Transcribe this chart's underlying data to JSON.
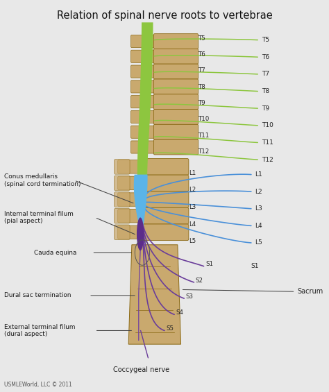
{
  "title": "Relation of spinal nerve roots to vertebrae",
  "background_color": "#e8e8e8",
  "title_fontsize": 10.5,
  "copyright": "USMLEWorld, LLC © 2011",
  "thoracic_labels_inner": [
    "T5",
    "T6",
    "T7",
    "T8",
    "T9",
    "T10",
    "T11",
    "T12"
  ],
  "thoracic_labels_outer": [
    "T5",
    "T6",
    "T7",
    "T8",
    "T9",
    "T10",
    "T11",
    "T12"
  ],
  "lumbar_labels_inner": [
    "L1",
    "L2",
    "L3",
    "L4",
    "L5"
  ],
  "lumbar_labels_outer": [
    "L1",
    "L2",
    "L3",
    "L4",
    "L5"
  ],
  "sacral_labels_inner": [
    "S1",
    "S2",
    "S3",
    "S4",
    "S5"
  ],
  "spine_color": "#c9a96e",
  "spine_edge": "#8B6914",
  "cord_green_color": "#8dc63f",
  "cord_blue_color": "#5ab4e8",
  "cord_darkblue_color": "#4040b0",
  "cord_purple_color": "#5c2d8a",
  "nerve_green_color": "#8dc63f",
  "nerve_blue_color": "#4a90d9",
  "nerve_purple_color": "#6a3d9a",
  "nerve_thin_color": "#9b7fc7"
}
